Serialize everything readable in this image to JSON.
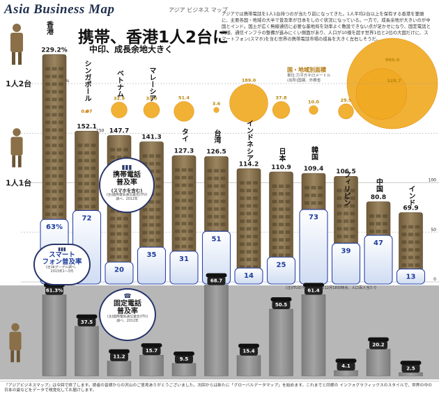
{
  "header": {
    "brand": "Asia Business Map",
    "brand_sub": "アジア ビジネス マップ",
    "title": "携帯、香港1人2台に",
    "subtitle": "中印、成長余地大きく",
    "lede": "アジアでは携帯電話を1人1台持つのが当たり前になってきた。1人平均2台以上を保有する香港を筆頭に、主要各国・地域の大半で普及率が日本をしのぐ状況になっている。一方で、成長余地が大きいのが中国とインド。国土が広く無線通信に必要な基地局を効率よく敷設できない点が足かせになり、固定電話と同様、通信インフラの整備が進みにくい側面があり、人口が10億を超す世界1位と2位の大国だけに、スマートフォン(スマホ)を含む世界の携帯電話市場の成長を大きく左右しそうだ。"
  },
  "scale_labels": {
    "two_per_person": "1人2台",
    "one_per_person": "1人1台",
    "p200": "200%",
    "p150": "150",
    "p100": "100",
    "p50": "50",
    "p0": "0"
  },
  "legend": {
    "mobile": {
      "title": "携帯電話\n普及率",
      "sub": "(スマホを含む)",
      "note": "(注)国際電気通信連合(ITU)\n調べ、2012年"
    },
    "smart": {
      "title": "スマート\nフォン普及率",
      "note": "(注)米グーグル調べ、\n2013年1〜3月"
    },
    "fixed": {
      "title": "固定電話\n普及率",
      "note": "(注)国際電気通信連合(ITU)\n調べ、2012年"
    },
    "area": {
      "title": "国・地域別面積",
      "sub": "単位:万平方キロメートル\n(出所)国連、外務省"
    }
  },
  "chart_data": [
    {
      "type": "bar",
      "title": "携帯電話普及率",
      "categories": [
        "香港",
        "シンガポール",
        "ベトナム",
        "マレーシア",
        "タイ",
        "台湾",
        "インドネシア",
        "日本",
        "韓国",
        "フィリピン",
        "中国",
        "インド"
      ],
      "values": [
        229.2,
        152.1,
        147.7,
        141.3,
        127.3,
        126.5,
        114.2,
        110.9,
        109.4,
        106.5,
        80.8,
        69.9
      ],
      "unit": "%",
      "ylim": [
        0,
        230
      ]
    },
    {
      "type": "bar",
      "title": "スマートフォン普及率",
      "categories": [
        "香港",
        "シンガポール",
        "ベトナム",
        "マレーシア",
        "タイ",
        "台湾",
        "インドネシア",
        "日本",
        "韓国",
        "フィリピン",
        "中国",
        "インド"
      ],
      "values": [
        63,
        72,
        20,
        35,
        31,
        51,
        14,
        25,
        73,
        39,
        47,
        13
      ],
      "unit": "%",
      "ylim": [
        0,
        100
      ]
    },
    {
      "type": "bar",
      "title": "固定電話普及率",
      "categories": [
        "香港",
        "シンガポール",
        "ベトナム",
        "マレーシア",
        "タイ",
        "台湾",
        "インドネシア",
        "日本",
        "韓国",
        "フィリピン",
        "中国",
        "インド"
      ],
      "values": [
        61.3,
        37.5,
        11.2,
        15.7,
        9.5,
        68.7,
        15.4,
        50.5,
        61.4,
        4.1,
        20.2,
        2.5
      ],
      "unit": "%",
      "ylim": [
        0,
        100
      ]
    },
    {
      "type": "scatter",
      "title": "国・地域別面積",
      "categories": [
        "香港",
        "シンガポール",
        "ベトナム",
        "マレーシア",
        "タイ",
        "台湾",
        "インドネシア",
        "日本",
        "韓国",
        "フィリピン",
        "中国",
        "インド"
      ],
      "values": [
        0.11,
        0.07,
        32.9,
        33.0,
        51.4,
        3.6,
        189.0,
        37.8,
        10.0,
        29.9,
        960.0,
        328.7
      ],
      "labels": [
        "0.11",
        "0.07",
        "32.9",
        "33.0",
        "51.4",
        "3.6",
        "189.0",
        "37.8",
        "10.0",
        "29.9",
        "960.0",
        "328.7"
      ]
    }
  ],
  "colors": {
    "bubble": "#f0a81e",
    "bubble_edge": "#e08a10",
    "smart": "#ffffff",
    "smart_edge": "#2a44a8",
    "smart_fill": "#dbe7f7",
    "phone": "#8a7552",
    "phone_dark": "#5b4a2f",
    "fixed_bg": "#b7b7b7",
    "fixed_bar": "#8f8f8f",
    "navy": "#27356b"
  },
  "icons": [
    "man-two-phones-icon",
    "man-one-phone-icon",
    "man-landline-icon",
    "landline-phone-icon",
    "smartphone-icon",
    "feature-phone-icon"
  ],
  "footer_text": "「アジアビジネスマップ」は今回で終了します。読者の皆様からの沢山のご意見ありがとうございました。次回からは新たに「グローバルデータマップ」を始めます。これまでと同様の インフォグラフィックスのスタイルで、世界の中の日本の姿などをデータで視覚化してお届けします。",
  "source_note": "(注)ITUのデータは13年12月18日時点、人口百人当たり"
}
